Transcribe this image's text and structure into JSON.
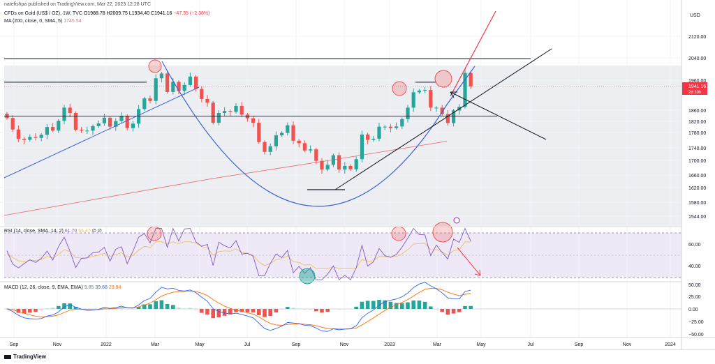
{
  "header": {
    "publisher": "natefishpa published on TradingView.com, Mar 22, 2023 12:28 UTC"
  },
  "legend": {
    "symbol": "CFDs on Gold (US$ / OZ), 1W, TVC",
    "o": "O1988.78",
    "h": "H2009.75",
    "l": "L1934.40",
    "c": "C1941.16",
    "chg": "−47.35 (−2.38%)",
    "ma_label": "MA (200, close, 0, SMA, 5)",
    "ma_value": "1745.54",
    "rsi_label": "RSI (14, close, SMA, 14, 2)",
    "rsi_v1": "61.70",
    "rsi_v2": "66.47",
    "rsi_v3": "∅ ∅",
    "macd_label": "MACD (12, 26, close, 9, EMA, EMA)",
    "macd_v1": "9.85",
    "macd_v2": "39.68",
    "macd_v3": "29.84"
  },
  "price_axis": {
    "unit": "USD",
    "ticks": [
      "2120.00",
      "2040.00",
      "1960.00",
      "1860.00",
      "1820.00",
      "1780.00",
      "1740.00",
      "1700.00",
      "1660.00",
      "1620.00",
      "1580.00",
      "1544.00"
    ],
    "current": "1941.16",
    "countdown": "2d 10h"
  },
  "rsi_axis": {
    "ticks": [
      "60.00",
      "40.00"
    ]
  },
  "macd_axis": {
    "ticks": [
      "50.00",
      "25.00",
      "0.00",
      "−25.00",
      "−50.00"
    ]
  },
  "time_axis": {
    "ticks": [
      "Sep",
      "Nov",
      "2022",
      "Mar",
      "May",
      "Jul",
      "Sep",
      "Nov",
      "2023",
      "Mar",
      "May",
      "Jul",
      "Sep",
      "Nov",
      "2024"
    ]
  },
  "footer": {
    "brand": "TradingView"
  },
  "colors": {
    "up": "#26a69a",
    "down": "#ef5350",
    "ma": "#e57373",
    "parabola": "#3b62d6",
    "rsi": "#7e57c2",
    "rsi_ma": "#e8c35a",
    "macd": "#2962ff",
    "signal": "#ff6d00"
  },
  "chart_data": {
    "type": "candlestick",
    "interval": "1W",
    "x": [
      "2021-08-30",
      "2021-09-06",
      "2021-09-13",
      "2021-09-20",
      "2021-09-27",
      "2021-10-04",
      "2021-10-11",
      "2021-10-18",
      "2021-10-25",
      "2021-11-01",
      "2021-11-08",
      "2021-11-15",
      "2021-11-22",
      "2021-11-29",
      "2021-12-06",
      "2021-12-13",
      "2021-12-20",
      "2021-12-27",
      "2022-01-03",
      "2022-01-10",
      "2022-01-17",
      "2022-01-24",
      "2022-01-31",
      "2022-02-07",
      "2022-02-14",
      "2022-02-21",
      "2022-02-28",
      "2022-03-07",
      "2022-03-14",
      "2022-03-21",
      "2022-03-28",
      "2022-04-04",
      "2022-04-11",
      "2022-04-18",
      "2022-04-25",
      "2022-05-02",
      "2022-05-09",
      "2022-05-16",
      "2022-05-23",
      "2022-05-30",
      "2022-06-06",
      "2022-06-13",
      "2022-06-20",
      "2022-06-27",
      "2022-07-04",
      "2022-07-11",
      "2022-07-18",
      "2022-07-25",
      "2022-08-01",
      "2022-08-08",
      "2022-08-15",
      "2022-08-22",
      "2022-08-29",
      "2022-09-05",
      "2022-09-12",
      "2022-09-19",
      "2022-09-26",
      "2022-10-03",
      "2022-10-10",
      "2022-10-17",
      "2022-10-24",
      "2022-10-31",
      "2022-11-07",
      "2022-11-14",
      "2022-11-21",
      "2022-11-28",
      "2022-12-05",
      "2022-12-12",
      "2022-12-19",
      "2022-12-26",
      "2023-01-02",
      "2023-01-09",
      "2023-01-16",
      "2023-01-23",
      "2023-01-30",
      "2023-02-06",
      "2023-02-13",
      "2023-02-20",
      "2023-02-27",
      "2023-03-06",
      "2023-03-13",
      "2023-03-20"
    ],
    "close": [
      1828,
      1787,
      1754,
      1750,
      1760,
      1757,
      1768,
      1796,
      1783,
      1818,
      1865,
      1846,
      1786,
      1783,
      1783,
      1799,
      1809,
      1829,
      1797,
      1817,
      1835,
      1792,
      1808,
      1860,
      1898,
      1889,
      1970,
      1987,
      1921,
      1957,
      1925,
      1946,
      1976,
      1932,
      1896,
      1883,
      1811,
      1846,
      1853,
      1850,
      1871,
      1840,
      1827,
      1811,
      1742,
      1707,
      1727,
      1766,
      1775,
      1802,
      1747,
      1738,
      1712,
      1716,
      1675,
      1644,
      1661,
      1695,
      1644,
      1657,
      1645,
      1681,
      1769,
      1750,
      1754,
      1797,
      1797,
      1792,
      1798,
      1824,
      1865,
      1920,
      1926,
      1928,
      1865,
      1865,
      1842,
      1810,
      1855,
      1868,
      1989,
      1941
    ],
    "ylim": [
      1544,
      2160
    ],
    "ma200_label": "1745.54",
    "horizontal_levels": [
      2040,
      1956,
      1835
    ],
    "annotations": [
      "circle 2022-03-07 high",
      "circle 2023-01-23 high",
      "circle 2023-03-20 high",
      "parabolic curve",
      "trendlines",
      "arrows"
    ],
    "rsi": {
      "ylim": [
        25,
        85
      ],
      "levels": [
        70,
        50,
        30
      ],
      "ticks": [
        60,
        40
      ],
      "last": 61.7,
      "ma_last": 66.47
    },
    "macd": {
      "ylim": [
        -60,
        60
      ],
      "ticks": [
        50,
        25,
        0,
        -25,
        -50
      ],
      "last_hist": 9.85,
      "last_macd": 39.68,
      "last_signal": 29.84
    }
  }
}
